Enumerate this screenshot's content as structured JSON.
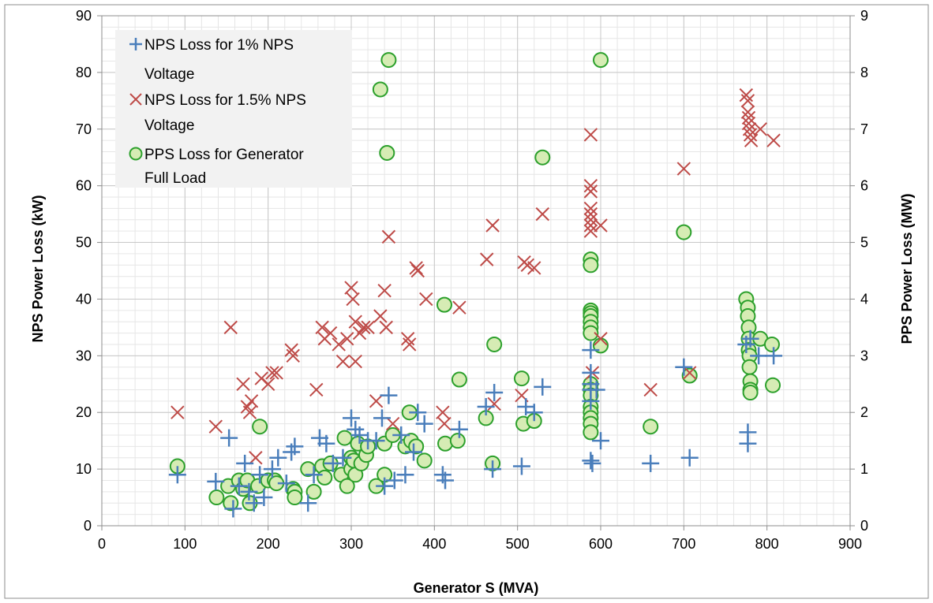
{
  "chart_data": {
    "type": "scatter",
    "xlabel": "Generator S (MVA)",
    "ylabel": "NPS Power Loss (kW)",
    "y2label": "PPS Power Loss (MW)",
    "xlim": [
      0,
      900
    ],
    "ylim": [
      0,
      90
    ],
    "y2lim": [
      0,
      9
    ],
    "x_ticks": [
      0,
      100,
      200,
      300,
      400,
      500,
      600,
      700,
      800,
      900
    ],
    "y_ticks": [
      0,
      10,
      20,
      30,
      40,
      50,
      60,
      70,
      80,
      90
    ],
    "y2_ticks": [
      0,
      1,
      2,
      3,
      4,
      5,
      6,
      7,
      8,
      9
    ],
    "grid": true,
    "legend_position": "top-left",
    "colors": {
      "nps1": "#4a7ebb",
      "nps15": "#be4b48",
      "pps": "#2ca02c",
      "pps_fill": "#d6ecb4"
    },
    "series": [
      {
        "name": "NPS Loss for 1% NPS Voltage",
        "legend_lines": [
          "NPS Loss for 1% NPS",
          "Voltage"
        ],
        "marker": "plus",
        "axis": "left",
        "points": [
          [
            91,
            9
          ],
          [
            137,
            7.8
          ],
          [
            153,
            15.5
          ],
          [
            158,
            3
          ],
          [
            165,
            7
          ],
          [
            172,
            11
          ],
          [
            177,
            6
          ],
          [
            183,
            4
          ],
          [
            190,
            9
          ],
          [
            195,
            5
          ],
          [
            205,
            10
          ],
          [
            212,
            12
          ],
          [
            222,
            7.5
          ],
          [
            228,
            13
          ],
          [
            232,
            14
          ],
          [
            248,
            4
          ],
          [
            255,
            9
          ],
          [
            262,
            15.5
          ],
          [
            270,
            14.5
          ],
          [
            278,
            11
          ],
          [
            290,
            12
          ],
          [
            300,
            19
          ],
          [
            305,
            17
          ],
          [
            310,
            16
          ],
          [
            320,
            15
          ],
          [
            330,
            15
          ],
          [
            337,
            19
          ],
          [
            340,
            7
          ],
          [
            345,
            23
          ],
          [
            352,
            8
          ],
          [
            360,
            16
          ],
          [
            365,
            9
          ],
          [
            375,
            13
          ],
          [
            380,
            20
          ],
          [
            388,
            18
          ],
          [
            410,
            9
          ],
          [
            413,
            8
          ],
          [
            430,
            17
          ],
          [
            462,
            21
          ],
          [
            470,
            10
          ],
          [
            472,
            23.5
          ],
          [
            505,
            10.5
          ],
          [
            510,
            21
          ],
          [
            520,
            20
          ],
          [
            530,
            24.5
          ],
          [
            588,
            31
          ],
          [
            588,
            27
          ],
          [
            588,
            25
          ],
          [
            588,
            24
          ],
          [
            588,
            22
          ],
          [
            588,
            11.5
          ],
          [
            590,
            11
          ],
          [
            595,
            24
          ],
          [
            600,
            15
          ],
          [
            660,
            11
          ],
          [
            700,
            28
          ],
          [
            707,
            12
          ],
          [
            775,
            32
          ],
          [
            777,
            16.5
          ],
          [
            777,
            14.5
          ],
          [
            780,
            33
          ],
          [
            790,
            30
          ],
          [
            808,
            30
          ]
        ]
      },
      {
        "name": "NPS Loss for 1.5% NPS Voltage",
        "legend_lines": [
          "NPS Loss for 1.5% NPS",
          "Voltage"
        ],
        "marker": "x",
        "axis": "left",
        "points": [
          [
            91,
            20
          ],
          [
            137,
            17.5
          ],
          [
            155,
            35
          ],
          [
            170,
            25
          ],
          [
            175,
            21
          ],
          [
            178,
            20
          ],
          [
            180,
            22
          ],
          [
            185,
            12
          ],
          [
            192,
            26
          ],
          [
            200,
            25
          ],
          [
            205,
            27
          ],
          [
            210,
            27
          ],
          [
            228,
            31
          ],
          [
            230,
            30
          ],
          [
            258,
            24
          ],
          [
            265,
            35
          ],
          [
            268,
            33
          ],
          [
            275,
            34
          ],
          [
            285,
            32
          ],
          [
            290,
            29
          ],
          [
            295,
            33
          ],
          [
            300,
            42
          ],
          [
            302,
            40
          ],
          [
            305,
            36
          ],
          [
            305,
            29
          ],
          [
            310,
            34
          ],
          [
            315,
            35
          ],
          [
            320,
            35
          ],
          [
            330,
            22
          ],
          [
            335,
            37
          ],
          [
            340,
            41.5
          ],
          [
            342,
            35
          ],
          [
            345,
            51
          ],
          [
            350,
            18
          ],
          [
            368,
            33
          ],
          [
            370,
            32
          ],
          [
            378,
            45.5
          ],
          [
            380,
            45
          ],
          [
            390,
            40
          ],
          [
            410,
            20
          ],
          [
            412,
            18
          ],
          [
            430,
            38.5
          ],
          [
            463,
            47
          ],
          [
            470,
            53
          ],
          [
            472,
            21.5
          ],
          [
            505,
            23
          ],
          [
            508,
            46.5
          ],
          [
            512,
            46
          ],
          [
            520,
            45.5
          ],
          [
            530,
            55
          ],
          [
            588,
            69
          ],
          [
            588,
            60
          ],
          [
            588,
            59
          ],
          [
            588,
            56
          ],
          [
            588,
            55
          ],
          [
            588,
            54
          ],
          [
            588,
            53
          ],
          [
            588,
            52
          ],
          [
            590,
            27
          ],
          [
            600,
            53
          ],
          [
            600,
            33
          ],
          [
            660,
            24
          ],
          [
            700,
            63
          ],
          [
            707,
            27
          ],
          [
            775,
            76
          ],
          [
            777,
            75
          ],
          [
            777,
            73
          ],
          [
            778,
            72
          ],
          [
            778,
            71
          ],
          [
            779,
            70
          ],
          [
            780,
            69
          ],
          [
            781,
            68
          ],
          [
            792,
            70
          ],
          [
            808,
            68
          ]
        ]
      },
      {
        "name": "PPS Loss for Generator Full Load",
        "legend_lines": [
          "PPS Loss for Generator",
          "Full Load"
        ],
        "marker": "circle",
        "axis": "right",
        "points": [
          [
            91,
            1.05
          ],
          [
            138,
            0.5
          ],
          [
            152,
            0.7
          ],
          [
            155,
            0.4
          ],
          [
            165,
            0.8
          ],
          [
            170,
            0.65
          ],
          [
            175,
            0.8
          ],
          [
            178,
            0.4
          ],
          [
            188,
            0.7
          ],
          [
            190,
            1.75
          ],
          [
            200,
            0.8
          ],
          [
            208,
            0.8
          ],
          [
            210,
            0.75
          ],
          [
            230,
            0.65
          ],
          [
            232,
            0.6
          ],
          [
            232,
            0.5
          ],
          [
            248,
            1
          ],
          [
            255,
            0.6
          ],
          [
            265,
            1.05
          ],
          [
            268,
            0.85
          ],
          [
            275,
            1.1
          ],
          [
            288,
            0.9
          ],
          [
            292,
            1.55
          ],
          [
            295,
            0.7
          ],
          [
            300,
            1.2
          ],
          [
            300,
            1.0
          ],
          [
            303,
            1.15
          ],
          [
            305,
            0.9
          ],
          [
            308,
            1.45
          ],
          [
            312,
            1.1
          ],
          [
            318,
            1.25
          ],
          [
            320,
            1.4
          ],
          [
            330,
            0.7
          ],
          [
            335,
            7.7
          ],
          [
            340,
            0.9
          ],
          [
            340,
            1.45
          ],
          [
            343,
            6.58
          ],
          [
            345,
            8.22
          ],
          [
            350,
            1.6
          ],
          [
            365,
            1.4
          ],
          [
            370,
            2.0
          ],
          [
            372,
            1.5
          ],
          [
            378,
            1.4
          ],
          [
            388,
            1.15
          ],
          [
            412,
            3.9
          ],
          [
            413,
            1.45
          ],
          [
            428,
            1.5
          ],
          [
            430,
            2.58
          ],
          [
            462,
            1.9
          ],
          [
            470,
            1.1
          ],
          [
            472,
            3.2
          ],
          [
            505,
            2.6
          ],
          [
            507,
            1.8
          ],
          [
            520,
            1.85
          ],
          [
            530,
            6.5
          ],
          [
            588,
            4.7
          ],
          [
            588,
            4.6
          ],
          [
            588,
            3.8
          ],
          [
            588,
            3.75
          ],
          [
            588,
            3.7
          ],
          [
            588,
            3.6
          ],
          [
            588,
            3.5
          ],
          [
            588,
            3.4
          ],
          [
            588,
            2.5
          ],
          [
            588,
            2.4
          ],
          [
            588,
            2.3
          ],
          [
            588,
            2.1
          ],
          [
            588,
            2.0
          ],
          [
            588,
            1.9
          ],
          [
            588,
            1.8
          ],
          [
            588,
            1.65
          ],
          [
            600,
            8.22
          ],
          [
            600,
            3.18
          ],
          [
            660,
            1.75
          ],
          [
            700,
            5.18
          ],
          [
            707,
            2.65
          ],
          [
            775,
            4.0
          ],
          [
            777,
            3.85
          ],
          [
            777,
            3.7
          ],
          [
            778,
            3.5
          ],
          [
            778,
            3.3
          ],
          [
            778,
            3.1
          ],
          [
            779,
            3.0
          ],
          [
            779,
            2.8
          ],
          [
            780,
            2.55
          ],
          [
            780,
            2.4
          ],
          [
            780,
            2.35
          ],
          [
            792,
            3.3
          ],
          [
            806,
            3.2
          ],
          [
            807,
            2.48
          ]
        ]
      }
    ]
  }
}
